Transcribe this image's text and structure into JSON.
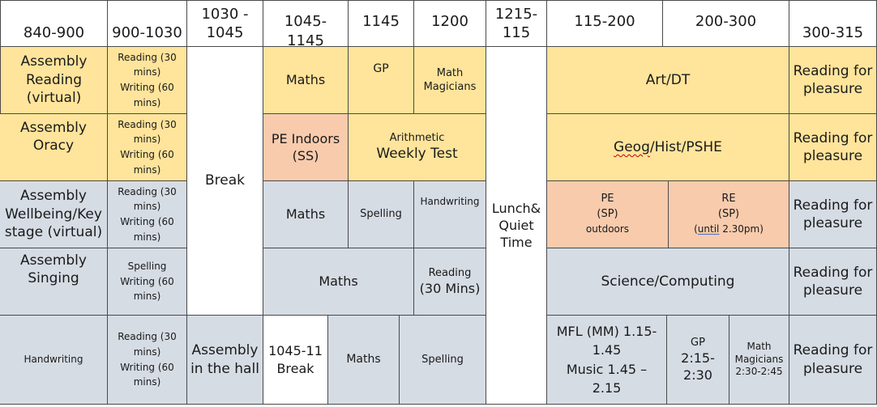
{
  "headers": [
    "840-900",
    "900-1030",
    "1030 - 1045",
    "1045-1145",
    "1145",
    "1200",
    "1215- 115",
    "115-200",
    "200-300",
    "300-315"
  ],
  "break_label": "Break",
  "lunch_label": "Lunch& Quiet Time",
  "mon": {
    "assembly": "Assembly Reading (virtual)",
    "reading": "Reading (30 mins)",
    "writing": "Writing (60 mins)",
    "maths": "Maths",
    "gp": "GP",
    "math_magicians": "Math Magicians",
    "art": "Art/DT",
    "reading_pleasure": "Reading for pleasure"
  },
  "tue": {
    "assembly": "Assembly Oracy",
    "reading": "Reading (30 mins)",
    "writing": "Writing (60 mins)",
    "pe": "PE Indoors (SS)",
    "arithmetic": "Arithmetic",
    "weekly_test": "Weekly Test",
    "geog": "Geog",
    "hist_pshe": "/Hist/PSHE",
    "reading_pleasure": "Reading for pleasure"
  },
  "wed": {
    "assembly": "Assembly Wellbeing/Key stage (virtual)",
    "reading": "Reading (30 mins)",
    "writing": "Writing (60 mins)",
    "maths": "Maths",
    "spelling": "Spelling",
    "handwriting": "Handwriting",
    "pe_line1": "PE",
    "pe_line2": "(SP)",
    "pe_line3": "outdoors",
    "re_line1": "RE",
    "re_line2": "(SP)",
    "re_line3a": "(",
    "re_line3b": "until",
    "re_line3c": " 2.30pm)",
    "reading_pleasure": "Reading for pleasure"
  },
  "thu": {
    "assembly": "Assembly Singing",
    "spelling": "Spelling",
    "writing": "Writing (60 mins)",
    "maths": "Maths",
    "reading_line1": "Reading",
    "reading_line2": "(30 Mins)",
    "science": "Science/Computing",
    "reading_pleasure": "Reading for pleasure"
  },
  "fri": {
    "handwriting": "Handwriting",
    "reading": "Reading (30 mins)",
    "writing": "Writing (60 mins)",
    "assembly_hall": "Assembly in the hall",
    "break_1045": "1045-11 Break",
    "maths": "Maths",
    "spelling": "Spelling",
    "mfl": "MFL (MM) 1.15-1.45",
    "music": "Music 1.45 – 2.15",
    "gp_line1": "GP",
    "gp_line2": "2:15-2:30",
    "mm_line1": "Math Magicians",
    "mm_line2": "2:30-2:45",
    "reading_pleasure": "Reading for pleasure"
  },
  "colors": {
    "yellow": "#ffe49b",
    "grey": "#d6dce4",
    "orange": "#f8cbad",
    "white": "#ffffff",
    "border": "#4a4a4a"
  }
}
